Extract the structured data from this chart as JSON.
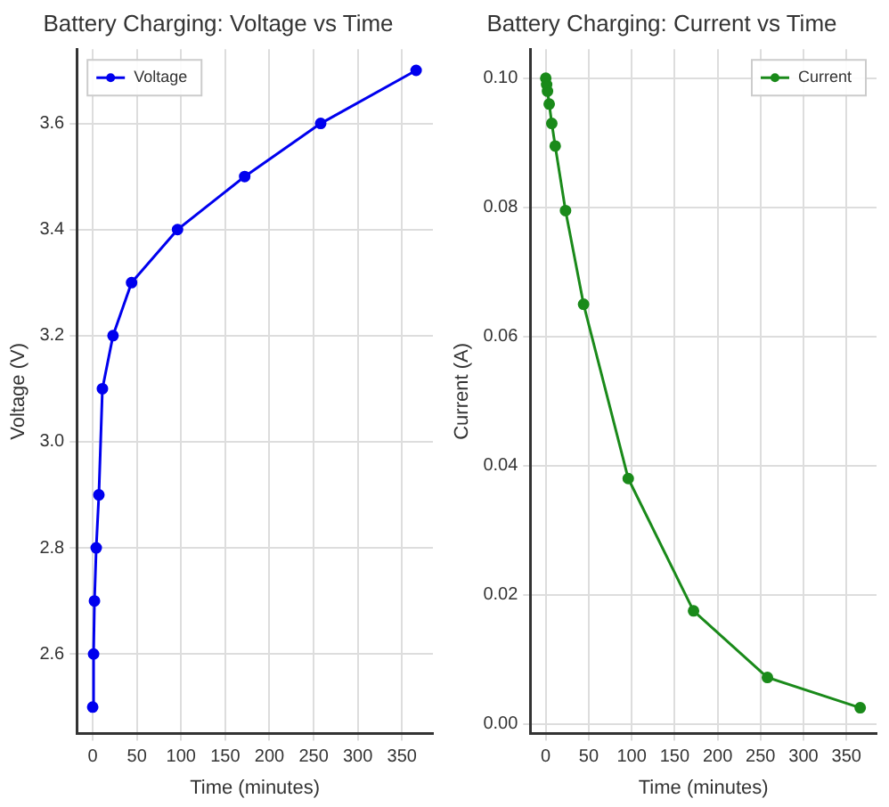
{
  "chart_data": [
    {
      "type": "line",
      "title": "Battery Charging: Voltage vs Time",
      "xlabel": "Time (minutes)",
      "ylabel": "Voltage (V)",
      "x": [
        0,
        1,
        2,
        4,
        7,
        11,
        23,
        44,
        96,
        172,
        258,
        366
      ],
      "xlim": [
        -18,
        385
      ],
      "xticks": [
        0,
        50,
        100,
        150,
        200,
        250,
        300,
        350
      ],
      "ylim": [
        2.45,
        3.74
      ],
      "yticks": [
        2.6,
        2.8,
        {
          "value": 3,
          "label": "3.0"
        },
        3.2,
        3.4,
        3.6
      ],
      "grid": true,
      "legend": "top left",
      "marker": "circle",
      "line_style": "solid",
      "series": [
        {
          "name": "Voltage",
          "color": "#0000ee",
          "values": [
            2.5,
            2.6,
            2.7,
            2.8,
            2.9,
            3.1,
            3.2,
            3.3,
            3.4,
            3.5,
            3.6,
            3.7
          ]
        }
      ]
    },
    {
      "type": "line",
      "title": "Battery Charging: Current vs Time",
      "xlabel": "Time (minutes)",
      "ylabel": "Current (A)",
      "x": [
        0,
        1,
        2,
        4,
        7,
        11,
        23,
        44,
        96,
        172,
        258,
        366
      ],
      "xlim": [
        -18,
        385
      ],
      "xticks": [
        0,
        50,
        100,
        150,
        200,
        250,
        300,
        350
      ],
      "ylim": [
        -0.0015,
        0.1045
      ],
      "yticks": [
        {
          "value": 0,
          "label": "0.00"
        },
        {
          "value": 0.02,
          "label": "0.02"
        },
        {
          "value": 0.04,
          "label": "0.04"
        },
        {
          "value": 0.06,
          "label": "0.06"
        },
        {
          "value": 0.08,
          "label": "0.08"
        },
        {
          "value": 0.1,
          "label": "0.10"
        }
      ],
      "grid": true,
      "legend": "top right",
      "marker": "circle",
      "line_style": "solid",
      "series": [
        {
          "name": "Current",
          "color": "#1a8a1a",
          "values": [
            0.1,
            0.099,
            0.098,
            0.096,
            0.093,
            0.0895,
            0.0795,
            0.065,
            0.038,
            0.0175,
            0.0072,
            0.0025
          ]
        }
      ]
    }
  ]
}
